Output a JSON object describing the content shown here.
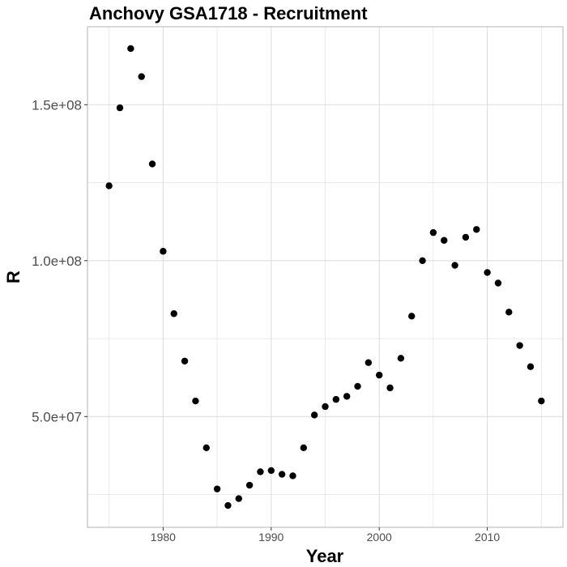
{
  "chart_data": {
    "type": "scatter",
    "title": "Anchovy GSA1718 - Recruitment",
    "xlabel": "Year",
    "ylabel": "R",
    "xlim": [
      1973.0,
      2017.0
    ],
    "ylim": [
      14500000.0,
      175000000.0
    ],
    "x_ticks": [
      1980,
      1990,
      2000,
      2010
    ],
    "x_tick_labels": [
      "1980",
      "1990",
      "2000",
      "2010"
    ],
    "x_minor_ticks": [
      1975,
      1985,
      1995,
      2005,
      2015
    ],
    "y_ticks": [
      50000000,
      100000000,
      150000000
    ],
    "y_tick_labels": [
      "5.0e+07",
      "1.0e+08",
      "1.5e+08"
    ],
    "y_minor_ticks": [
      25000000,
      75000000,
      125000000
    ],
    "grid": true,
    "series": [
      {
        "x": [
          1975,
          1976,
          1977,
          1978,
          1979,
          1980,
          1981,
          1982,
          1983,
          1984,
          1985,
          1986,
          1987,
          1988,
          1989,
          1990,
          1991,
          1992,
          1993,
          1994,
          1995,
          1996,
          1997,
          1998,
          1999,
          2000,
          2001,
          2002,
          2003,
          2004,
          2005,
          2006,
          2007,
          2008,
          2009,
          2010,
          2011,
          2012,
          2013,
          2014,
          2015
        ],
        "values": [
          124000000,
          149000000,
          168000000,
          159000000,
          131000000,
          103000000,
          83000000,
          67800000,
          55000000,
          40000000,
          26800000,
          21500000,
          23700000,
          28000000,
          32300000,
          32700000,
          31500000,
          31000000,
          40000000,
          50500000,
          53200000,
          55500000,
          56500000,
          59700000,
          67300000,
          63300000,
          59200000,
          68700000,
          82200000,
          100000000,
          109000000,
          106500000,
          98500000,
          107500000,
          110000000,
          96200000,
          92800000,
          83500000,
          72800000,
          66000000,
          55000000
        ]
      }
    ],
    "colors": {
      "point": "#000000",
      "grid": "#dedede",
      "panel_border": "#b3b3b3",
      "tick_text": "#4d4d4d",
      "title_text": "#000000"
    }
  }
}
